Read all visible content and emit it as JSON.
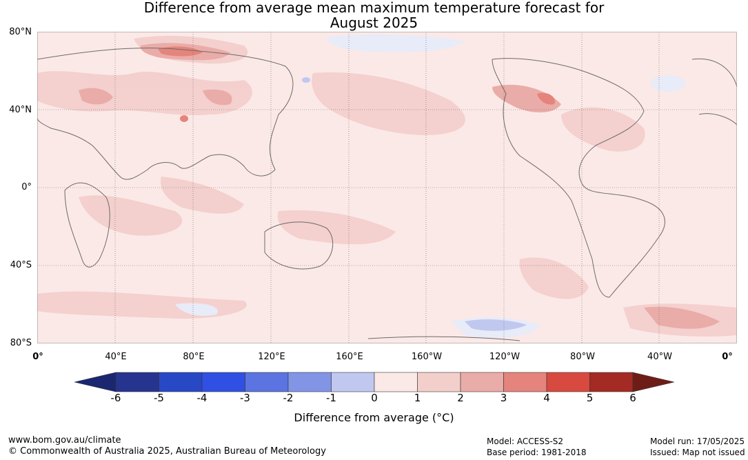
{
  "title_line1": "Difference from average mean maximum temperature forecast for",
  "title_line2": "August 2025",
  "lat_labels": [
    "80°N",
    "40°N",
    "0°",
    "40°S",
    "80°S"
  ],
  "lon_labels": [
    "0°",
    "40°E",
    "80°E",
    "120°E",
    "160°E",
    "160°W",
    "120°W",
    "80°W",
    "40°W",
    "0°"
  ],
  "colorbar": {
    "ticks": [
      "-6",
      "-5",
      "-4",
      "-3",
      "-2",
      "-1",
      "0",
      "1",
      "2",
      "3",
      "4",
      "5",
      "6"
    ],
    "colors": [
      "#26348f",
      "#2848c6",
      "#3050e4",
      "#5b74e2",
      "#8294e6",
      "#c0c8f0",
      "#e8ebf8",
      "#fbe9e7",
      "#f3cfcc",
      "#eaaca8",
      "#e5847c",
      "#d84a40",
      "#a42a24"
    ],
    "under_color": "#1a2670",
    "over_color": "#6e1d16",
    "label": "Difference from average (°C)"
  },
  "footer": {
    "url": "www.bom.gov.au/climate",
    "copyright": "© Commonwealth of Australia 2025, Australian Bureau of Meteorology",
    "model": "Model: ACCESS-S2",
    "base_period": "Base period: 1981-2018",
    "model_run": "Model run: 17/05/2025",
    "issued": "Issued: Map not issued"
  }
}
